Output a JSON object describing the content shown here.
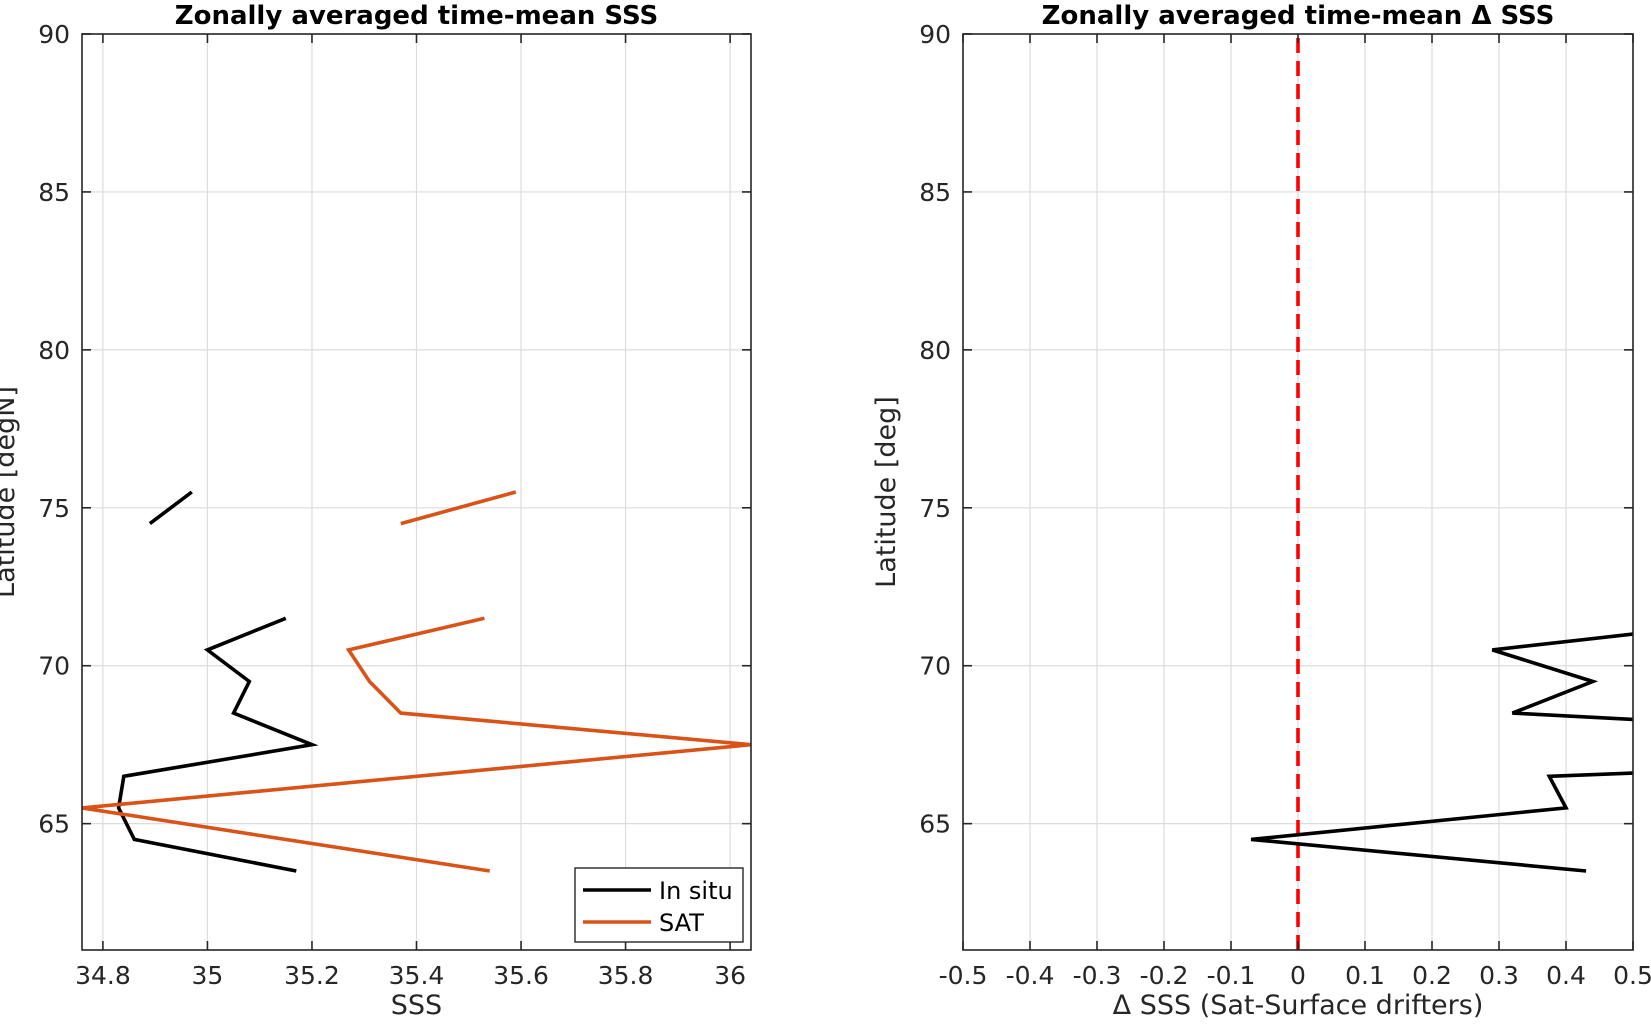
{
  "chart_data": [
    {
      "type": "line",
      "title": "Zonally averaged time-mean SSS",
      "xlabel": "SSS",
      "ylabel": "Latitude [degN]",
      "xlim": [
        34.76,
        36.04
      ],
      "ylim": [
        61,
        90
      ],
      "xticks": [
        34.8,
        35,
        35.2,
        35.4,
        35.6,
        35.8,
        36
      ],
      "xtick_labels": [
        "34.8",
        "35",
        "35.2",
        "35.4",
        "35.6",
        "35.8",
        "36"
      ],
      "yticks": [
        65,
        70,
        75,
        80,
        85,
        90
      ],
      "ytick_labels": [
        "65",
        "70",
        "75",
        "80",
        "85",
        "90"
      ],
      "grid": true,
      "legend": {
        "location": "bottom-right",
        "entries": [
          {
            "label": "In situ",
            "color": "#000000"
          },
          {
            "label": "SAT",
            "color": "#D95319"
          }
        ]
      },
      "series": [
        {
          "name": "In situ",
          "color": "#000000",
          "segments": [
            [
              [
                35.17,
                63.5
              ],
              [
                34.86,
                64.5
              ],
              [
                34.83,
                65.5
              ],
              [
                34.84,
                66.5
              ],
              [
                35.2,
                67.5
              ],
              [
                35.05,
                68.5
              ],
              [
                35.08,
                69.5
              ],
              [
                35.0,
                70.5
              ],
              [
                35.15,
                71.5
              ]
            ],
            [
              [
                34.89,
                74.5
              ],
              [
                34.97,
                75.5
              ]
            ]
          ]
        },
        {
          "name": "SAT",
          "color": "#D95319",
          "segments": [
            [
              [
                35.54,
                63.5
              ],
              [
                34.76,
                65.5
              ],
              [
                36.04,
                67.5
              ],
              [
                35.37,
                68.5
              ],
              [
                35.31,
                69.5
              ],
              [
                35.27,
                70.5
              ],
              [
                35.53,
                71.5
              ]
            ],
            [
              [
                35.37,
                74.5
              ],
              [
                35.59,
                75.5
              ]
            ]
          ]
        }
      ]
    },
    {
      "type": "line",
      "title": "Zonally averaged time-mean Δ SSS",
      "xlabel": "Δ SSS (Sat-Surface drifters)",
      "ylabel": "Latitude [deg]",
      "xlim": [
        -0.5,
        0.5
      ],
      "ylim": [
        61,
        90
      ],
      "xticks": [
        -0.5,
        -0.4,
        -0.3,
        -0.2,
        -0.1,
        0,
        0.1,
        0.2,
        0.3,
        0.4,
        0.5
      ],
      "xtick_labels": [
        "-0.5",
        "-0.4",
        "-0.3",
        "-0.2",
        "-0.1",
        "0",
        "0.1",
        "0.2",
        "0.3",
        "0.4",
        "0.5"
      ],
      "yticks": [
        65,
        70,
        75,
        80,
        85,
        90
      ],
      "ytick_labels": [
        "65",
        "70",
        "75",
        "80",
        "85",
        "90"
      ],
      "grid": true,
      "reference_line": {
        "x": 0,
        "color": "#FF0000",
        "style": "dashed"
      },
      "series": [
        {
          "color": "#000000",
          "segments": [
            [
              [
                0.43,
                63.5
              ],
              [
                -0.07,
                64.5
              ],
              [
                0.4,
                65.5
              ],
              [
                0.375,
                66.5
              ],
              [
                0.5,
                66.6
              ]
            ],
            [
              [
                0.5,
                68.3
              ],
              [
                0.32,
                68.5
              ],
              [
                0.44,
                69.5
              ],
              [
                0.29,
                70.5
              ],
              [
                0.5,
                71.0
              ]
            ]
          ]
        }
      ]
    }
  ]
}
